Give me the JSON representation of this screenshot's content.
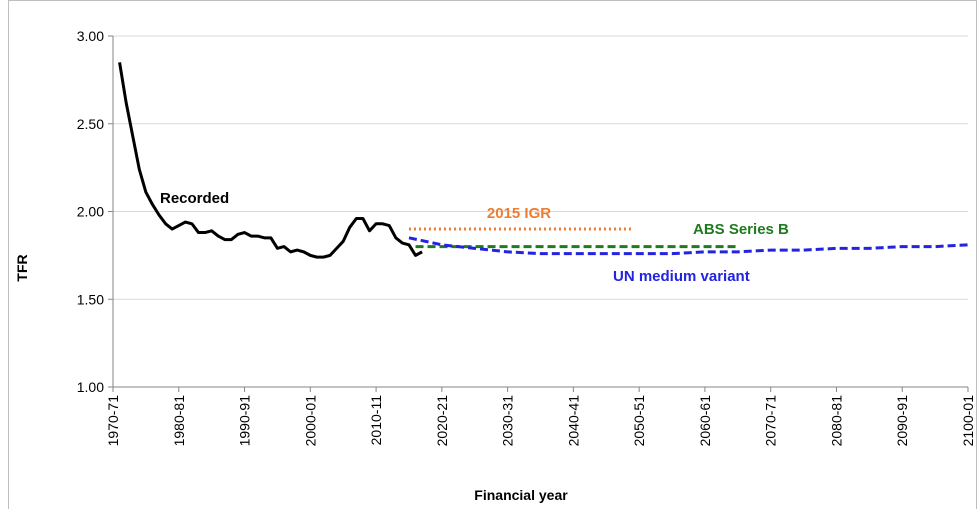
{
  "chart_data": {
    "type": "line",
    "x_label": "Financial year",
    "y_label": "TFR",
    "xlim": [
      1970,
      2100
    ],
    "ylim": [
      1,
      3
    ],
    "xticks": [
      {
        "value": 1970,
        "label": "1970-71"
      },
      {
        "value": 1980,
        "label": "1980-81"
      },
      {
        "value": 1990,
        "label": "1990-91"
      },
      {
        "value": 2000,
        "label": "2000-01"
      },
      {
        "value": 2010,
        "label": "2010-11"
      },
      {
        "value": 2020,
        "label": "2020-21"
      },
      {
        "value": 2030,
        "label": "2030-31"
      },
      {
        "value": 2040,
        "label": "2040-41"
      },
      {
        "value": 2050,
        "label": "2050-51"
      },
      {
        "value": 2060,
        "label": "2060-61"
      },
      {
        "value": 2070,
        "label": "2070-71"
      },
      {
        "value": 2080,
        "label": "2080-81"
      },
      {
        "value": 2090,
        "label": "2090-91"
      },
      {
        "value": 2100,
        "label": "2100-01"
      }
    ],
    "yticks": [
      {
        "value": 1,
        "label": "1.00"
      },
      {
        "value": 1.5,
        "label": "1.50"
      },
      {
        "value": 2,
        "label": "2.00"
      },
      {
        "value": 2.5,
        "label": "2.50"
      },
      {
        "value": 3,
        "label": "3.00"
      }
    ],
    "grid": true,
    "series": [
      {
        "name": "Recorded",
        "color": "#000000",
        "style": "solid",
        "x": [
          1971,
          1972,
          1973,
          1974,
          1975,
          1976,
          1977,
          1978,
          1979,
          1980,
          1981,
          1982,
          1983,
          1984,
          1985,
          1986,
          1987,
          1988,
          1989,
          1990,
          1991,
          1992,
          1993,
          1994,
          1995,
          1996,
          1997,
          1998,
          1999,
          2000,
          2001,
          2002,
          2003,
          2004,
          2005,
          2006,
          2007,
          2008,
          2009,
          2010,
          2011,
          2012,
          2013,
          2014,
          2015,
          2016,
          2017
        ],
        "values": [
          2.85,
          2.62,
          2.43,
          2.24,
          2.11,
          2.04,
          1.98,
          1.93,
          1.9,
          1.92,
          1.94,
          1.93,
          1.88,
          1.88,
          1.89,
          1.86,
          1.84,
          1.84,
          1.87,
          1.88,
          1.86,
          1.86,
          1.85,
          1.85,
          1.79,
          1.8,
          1.77,
          1.78,
          1.77,
          1.75,
          1.74,
          1.74,
          1.75,
          1.79,
          1.83,
          1.91,
          1.96,
          1.96,
          1.89,
          1.93,
          1.93,
          1.92,
          1.85,
          1.82,
          1.81,
          1.75,
          1.77
        ]
      },
      {
        "name": "2015 IGR",
        "color": "#ed7d31",
        "style": "dotted",
        "x": [
          2015,
          2049
        ],
        "values": [
          1.9,
          1.9
        ]
      },
      {
        "name": "ABS Series B",
        "color": "#1e7b1e",
        "style": "dashed",
        "x": [
          2016,
          2065
        ],
        "values": [
          1.8,
          1.8
        ]
      },
      {
        "name": "UN medium variant",
        "color": "#2323e0",
        "style": "dashed",
        "x": [
          2015,
          2020,
          2025,
          2030,
          2035,
          2040,
          2045,
          2050,
          2055,
          2060,
          2065,
          2070,
          2075,
          2080,
          2085,
          2090,
          2095,
          2100
        ],
        "values": [
          1.85,
          1.81,
          1.79,
          1.77,
          1.76,
          1.76,
          1.76,
          1.76,
          1.76,
          1.77,
          1.77,
          1.78,
          1.78,
          1.79,
          1.79,
          1.8,
          1.8,
          1.81
        ]
      }
    ]
  }
}
